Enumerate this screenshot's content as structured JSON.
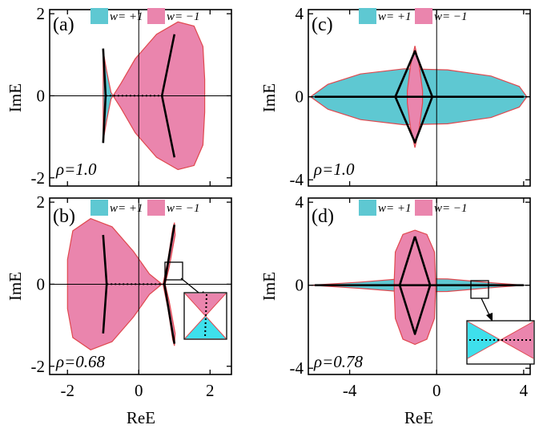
{
  "colors": {
    "winding_plus": "#5ec8d2",
    "winding_minus": "#ea85ad",
    "outline": "#e0484e",
    "spectrum_line": "#000000",
    "axis": "#000000"
  },
  "legend": {
    "plus_label": "w= +1",
    "minus_label": "w= −1"
  },
  "chart_data": [
    {
      "panel": "(a)",
      "type": "scatter",
      "description_level": "rho",
      "annotation": "ρ=1.0",
      "xlabel": "",
      "ylabel": "ImE",
      "xlim": [
        -2.5,
        2.6
      ],
      "ylim": [
        -2.2,
        2.1
      ],
      "xticks": [
        -2,
        0,
        2
      ],
      "yticks": [
        -2,
        0,
        2
      ],
      "show_xticklabels": false,
      "show_yticklabels": true,
      "xtick_labels": [],
      "ytick_labels": [
        "-2",
        "0",
        "2"
      ],
      "regions": [
        {
          "winding": "w= +1",
          "points": [
            [
              -1.0,
              1.1
            ],
            [
              -0.9,
              0.6
            ],
            [
              -0.78,
              0.08
            ],
            [
              -0.72,
              0.0
            ],
            [
              -0.78,
              -0.08
            ],
            [
              -0.9,
              -0.6
            ],
            [
              -1.0,
              -1.1
            ],
            [
              -1.0,
              0.0
            ]
          ]
        },
        {
          "winding": "w= −1",
          "points": [
            [
              -0.72,
              0.0
            ],
            [
              -0.5,
              0.3
            ],
            [
              -0.1,
              0.9
            ],
            [
              0.5,
              1.5
            ],
            [
              1.1,
              1.8
            ],
            [
              1.55,
              1.7
            ],
            [
              1.8,
              1.2
            ],
            [
              1.85,
              0.4
            ],
            [
              1.85,
              -0.4
            ],
            [
              1.8,
              -1.2
            ],
            [
              1.55,
              -1.7
            ],
            [
              1.1,
              -1.8
            ],
            [
              0.5,
              -1.5
            ],
            [
              -0.1,
              -0.9
            ],
            [
              -0.5,
              -0.3
            ]
          ]
        }
      ],
      "spectrum_lines": [
        [
          [
            -1.0,
            1.15
          ],
          [
            -0.93,
            0.0
          ],
          [
            -1.0,
            -1.15
          ]
        ],
        [
          [
            1.0,
            1.5
          ],
          [
            0.65,
            0.0
          ],
          [
            1.0,
            -1.5
          ]
        ]
      ],
      "dotted_lines": [
        [
          [
            -0.93,
            0.0
          ],
          [
            0.65,
            0.0
          ]
        ]
      ]
    },
    {
      "panel": "(b)",
      "type": "scatter",
      "annotation": "ρ=0.68",
      "xlabel": "ReE",
      "ylabel": "ImE",
      "xlim": [
        -2.5,
        2.6
      ],
      "ylim": [
        -2.2,
        2.1
      ],
      "xticks": [
        -2,
        0,
        2
      ],
      "yticks": [
        -2,
        0,
        2
      ],
      "show_xticklabels": true,
      "show_yticklabels": true,
      "xtick_labels": [
        "-2",
        "0",
        "2"
      ],
      "ytick_labels": [
        "-2",
        "0",
        "2"
      ],
      "regions": [
        {
          "winding": "w= −1",
          "points": [
            [
              0.65,
              0.0
            ],
            [
              0.3,
              0.25
            ],
            [
              -0.15,
              0.8
            ],
            [
              -0.75,
              1.4
            ],
            [
              -1.35,
              1.6
            ],
            [
              -1.85,
              1.3
            ],
            [
              -2.0,
              0.6
            ],
            [
              -2.0,
              -0.6
            ],
            [
              -1.85,
              -1.3
            ],
            [
              -1.35,
              -1.6
            ],
            [
              -0.75,
              -1.4
            ],
            [
              -0.15,
              -0.8
            ],
            [
              0.3,
              -0.25
            ]
          ]
        },
        {
          "winding": "w= −1",
          "points": [
            [
              0.68,
              0.0
            ],
            [
              0.82,
              0.6
            ],
            [
              0.95,
              1.35
            ],
            [
              1.0,
              1.5
            ],
            [
              1.02,
              1.2
            ],
            [
              0.85,
              0.4
            ],
            [
              0.74,
              0.0
            ],
            [
              0.85,
              -0.4
            ],
            [
              1.02,
              -1.2
            ],
            [
              1.0,
              -1.5
            ],
            [
              0.95,
              -1.35
            ],
            [
              0.82,
              -0.6
            ]
          ]
        }
      ],
      "spectrum_lines": [
        [
          [
            -1.0,
            1.2
          ],
          [
            -0.9,
            0.0
          ],
          [
            -1.0,
            -1.2
          ]
        ],
        [
          [
            1.0,
            1.45
          ],
          [
            0.72,
            0.0
          ],
          [
            1.0,
            -1.45
          ]
        ]
      ],
      "dotted_lines": [
        [
          [
            -0.9,
            0.0
          ],
          [
            0.72,
            0.0
          ]
        ]
      ],
      "inset": {
        "zoom_center": [
          0.72,
          0.35
        ],
        "colors": [
          "w= −1",
          "w= +1"
        ]
      }
    },
    {
      "panel": "(c)",
      "type": "scatter",
      "annotation": "ρ=1.0",
      "xlabel": "",
      "ylabel": "ImE",
      "xlim": [
        -5.9,
        4.3
      ],
      "ylim": [
        -4.3,
        4.2
      ],
      "xticks": [
        -4,
        0,
        4
      ],
      "yticks": [
        -4,
        0,
        4
      ],
      "show_xticklabels": false,
      "show_yticklabels": true,
      "xtick_labels": [],
      "ytick_labels": [
        "-4",
        "0",
        "4"
      ],
      "regions": [
        {
          "winding": "w= +1",
          "points": [
            [
              -5.8,
              0.0
            ],
            [
              -5.0,
              0.6
            ],
            [
              -3.5,
              1.1
            ],
            [
              -1.5,
              1.35
            ],
            [
              0.5,
              1.3
            ],
            [
              2.5,
              1.0
            ],
            [
              3.8,
              0.5
            ],
            [
              4.15,
              0.0
            ],
            [
              3.8,
              -0.5
            ],
            [
              2.5,
              -1.0
            ],
            [
              0.5,
              -1.3
            ],
            [
              -1.5,
              -1.35
            ],
            [
              -3.5,
              -1.1
            ],
            [
              -5.0,
              -0.6
            ]
          ]
        },
        {
          "winding": "w= −1",
          "points": [
            [
              -1.0,
              2.45
            ],
            [
              -0.8,
              1.5
            ],
            [
              -0.65,
              0.3
            ],
            [
              -0.65,
              -0.3
            ],
            [
              -0.8,
              -1.5
            ],
            [
              -1.0,
              -2.45
            ],
            [
              -1.2,
              -1.5
            ],
            [
              -1.35,
              -0.3
            ],
            [
              -1.35,
              0.3
            ],
            [
              -1.2,
              1.5
            ]
          ]
        }
      ],
      "spectrum_lines": [
        [
          [
            -5.6,
            0.0
          ],
          [
            4.0,
            0.0
          ]
        ],
        [
          [
            -1.9,
            0.0
          ],
          [
            -1.0,
            2.2
          ],
          [
            -0.2,
            0.0
          ],
          [
            -1.0,
            -2.2
          ],
          [
            -1.9,
            0.0
          ]
        ]
      ],
      "dotted_lines": []
    },
    {
      "panel": "(d)",
      "type": "scatter",
      "annotation": "ρ=0.78",
      "xlabel": "ReE",
      "ylabel": "ImE",
      "xlim": [
        -5.9,
        4.3
      ],
      "ylim": [
        -4.3,
        4.2
      ],
      "xticks": [
        -4,
        0,
        4
      ],
      "yticks": [
        -4,
        0,
        4
      ],
      "show_xticklabels": true,
      "show_yticklabels": true,
      "xtick_labels": [
        "-4",
        "0",
        "4"
      ],
      "ytick_labels": [
        "-4",
        "0",
        "4"
      ],
      "regions": [
        {
          "winding": "w= +1",
          "points": [
            [
              -5.8,
              0.0
            ],
            [
              -3.5,
              0.15
            ],
            [
              -1.5,
              0.32
            ],
            [
              0.5,
              0.3
            ],
            [
              2.5,
              0.12
            ],
            [
              4.0,
              0.0
            ],
            [
              2.5,
              -0.12
            ],
            [
              0.5,
              -0.3
            ],
            [
              -1.5,
              -0.32
            ],
            [
              -3.5,
              -0.15
            ]
          ]
        },
        {
          "winding": "w= −1",
          "points": [
            [
              -1.0,
              2.65
            ],
            [
              -0.45,
              2.45
            ],
            [
              -0.1,
              1.6
            ],
            [
              -0.05,
              0.3
            ],
            [
              -0.05,
              -0.3
            ],
            [
              -0.1,
              -1.6
            ],
            [
              -0.45,
              -2.6
            ],
            [
              -1.0,
              -2.85
            ],
            [
              -1.55,
              -2.6
            ],
            [
              -1.9,
              -1.6
            ],
            [
              -1.95,
              -0.3
            ],
            [
              -1.95,
              0.3
            ],
            [
              -1.9,
              1.6
            ],
            [
              -1.55,
              2.45
            ]
          ]
        }
      ],
      "spectrum_lines": [
        [
          [
            -5.6,
            0.0
          ],
          [
            4.0,
            0.0
          ]
        ],
        [
          [
            -1.0,
            2.35
          ],
          [
            -0.3,
            0.0
          ],
          [
            -1.0,
            -2.35
          ],
          [
            -1.7,
            0.0
          ],
          [
            -1.0,
            2.35
          ]
        ]
      ],
      "dotted_lines": [],
      "inset": {
        "zoom_center": [
          2.0,
          0.0
        ],
        "colors": [
          "w= +1",
          "w= −1"
        ]
      }
    }
  ]
}
